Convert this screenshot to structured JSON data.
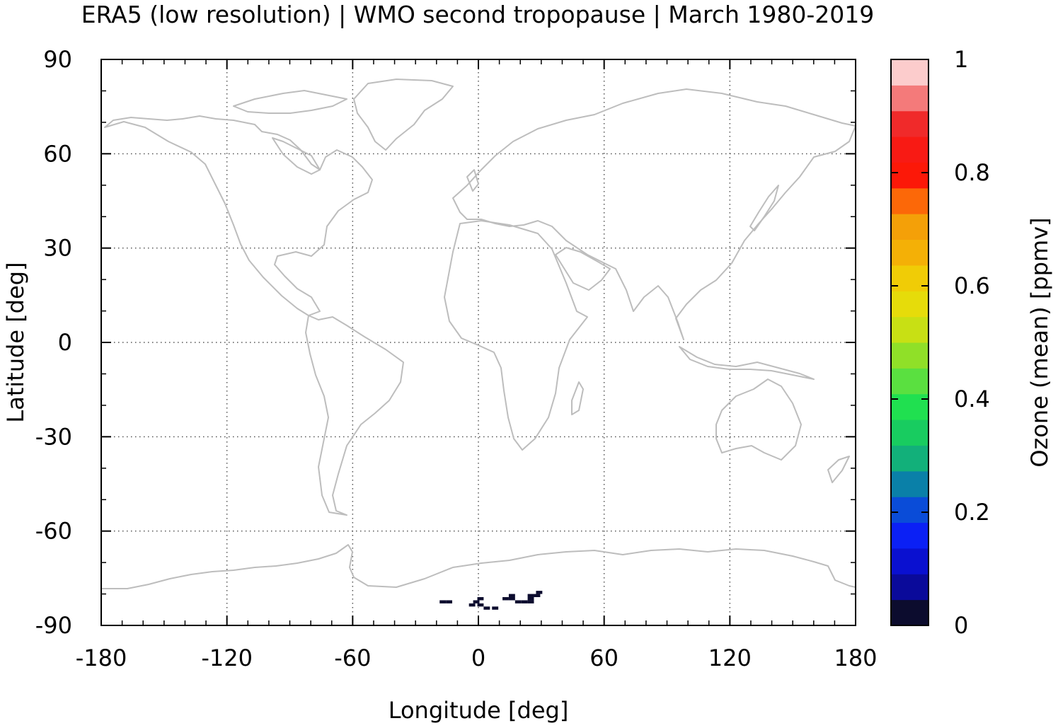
{
  "title": "ERA5 (low resolution) | WMO second tropopause | March 1980-2019",
  "xaxis": {
    "label": "Longitude [deg]",
    "range": [
      -180,
      180
    ],
    "ticks": [
      -180,
      -120,
      -60,
      0,
      60,
      120,
      180
    ],
    "tick_labels": [
      "-180",
      "-120",
      "-60",
      "0",
      "60",
      "120",
      "180"
    ]
  },
  "yaxis": {
    "label": "Latitude [deg]",
    "range": [
      -90,
      90
    ],
    "ticks": [
      90,
      60,
      30,
      0,
      -30,
      -60,
      -90
    ],
    "tick_labels": [
      "90",
      "60",
      "30",
      "0",
      "-30",
      "-60",
      "-90"
    ]
  },
  "colorbar": {
    "label": "Ozone (mean) [ppmv]",
    "range": [
      0,
      1
    ],
    "tick_labels": [
      "1",
      "0.8",
      "0.6",
      "0.4",
      "0.2",
      "0"
    ],
    "colors": [
      "#0c0c2e",
      "#0a0a9a",
      "#0a10d0",
      "#0b20f5",
      "#0a4cd8",
      "#0a80a8",
      "#12b07a",
      "#18cc60",
      "#20e050",
      "#5ae040",
      "#90e028",
      "#c8e014",
      "#e6dc0a",
      "#f0cc06",
      "#f4b006",
      "#f4a008",
      "#fc6808",
      "#fc1808",
      "#f81a14",
      "#f02a2a",
      "#f47a7a",
      "#fccccc"
    ]
  },
  "grid": true,
  "coastline_color": "#bdbdbd",
  "chart_data": {
    "type": "heatmap",
    "title": "ERA5 (low resolution) | WMO second tropopause | March 1980-2019",
    "xlabel": "Longitude [deg]",
    "ylabel": "Latitude [deg]",
    "xlim": [
      -180,
      180
    ],
    "ylim": [
      -90,
      90
    ],
    "colorbar_label": "Ozone (mean) [ppmv]",
    "clim": [
      0,
      1
    ],
    "cells": [
      {
        "lon": -17,
        "lat": -82.5,
        "value": 0.02
      },
      {
        "lon": -14,
        "lat": -82.5,
        "value": 0.02
      },
      {
        "lon": -1,
        "lat": -82.5,
        "value": 0.02
      },
      {
        "lon": 1,
        "lat": -81.5,
        "value": 0.02
      },
      {
        "lon": 1,
        "lat": -83.5,
        "value": 0.02
      },
      {
        "lon": -3,
        "lat": -83.5,
        "value": 0.02
      },
      {
        "lon": 4,
        "lat": -84.5,
        "value": 0.02
      },
      {
        "lon": 8,
        "lat": -84.5,
        "value": 0.02
      },
      {
        "lon": 13,
        "lat": -81.5,
        "value": 0.02
      },
      {
        "lon": 16,
        "lat": -81.5,
        "value": 0.02
      },
      {
        "lon": 16,
        "lat": -80.5,
        "value": 0.02
      },
      {
        "lon": 19,
        "lat": -82.5,
        "value": 0.02
      },
      {
        "lon": 22,
        "lat": -82.5,
        "value": 0.02
      },
      {
        "lon": 25,
        "lat": -82.5,
        "value": 0.02
      },
      {
        "lon": 25,
        "lat": -81.5,
        "value": 0.02
      },
      {
        "lon": 25,
        "lat": -80.5,
        "value": 0.02
      },
      {
        "lon": 28,
        "lat": -80.5,
        "value": 0.02
      },
      {
        "lon": 29,
        "lat": -79.5,
        "value": 0.02
      }
    ]
  }
}
